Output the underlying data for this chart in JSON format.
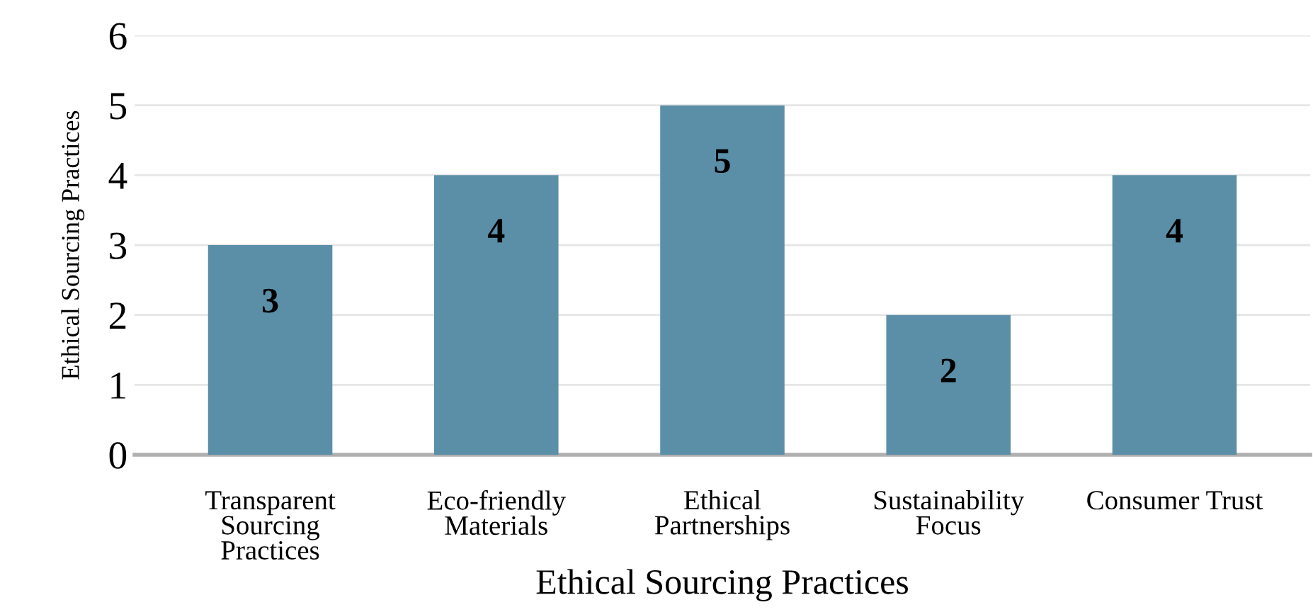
{
  "chart_data": {
    "type": "bar",
    "categories": [
      "Transparent\nSourcing\nPractices",
      "Eco-friendly\nMaterials",
      "Ethical\nPartnerships",
      "Sustainability\nFocus",
      "Consumer Trust"
    ],
    "values": [
      3,
      4,
      5,
      2,
      4
    ],
    "color": "#5b8fa8",
    "xlabel": "Ethical Sourcing Practices",
    "ylabel": "Ethical Sourcing Practices",
    "ylim": [
      0,
      6
    ],
    "yticks": [
      0,
      1,
      2,
      3,
      4,
      5,
      6
    ],
    "grid": "y",
    "data_labels": true
  }
}
